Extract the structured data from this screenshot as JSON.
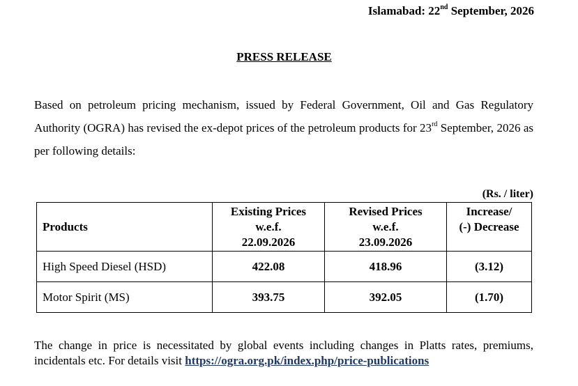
{
  "header": {
    "city": "Islamabad: 22",
    "date_suffix": "nd",
    "date_rest": " September, 2026"
  },
  "title": "PRESS RELEASE",
  "intro": {
    "text_before": "Based on petroleum pricing mechanism, issued by Federal Government, Oil and Gas Regulatory Authority (OGRA) has revised the ex-depot prices of the petroleum products for 23",
    "suffix": "rd",
    "text_after": " September, 2026 as per following details:"
  },
  "unit_note": "(Rs. / liter)",
  "table": {
    "headers": {
      "products": "Products",
      "existing_line1": "Existing Prices",
      "existing_line2": "w.e.f.",
      "existing_line3": "22.09.2026",
      "revised_line1": "Revised Prices",
      "revised_line2": "w.e.f.",
      "revised_line3": "23.09.2026",
      "change_line1": "Increase/",
      "change_line2": "(-) Decrease"
    },
    "rows": [
      {
        "product": "High Speed Diesel (HSD)",
        "existing": "422.08",
        "revised": "418.96",
        "change": "(3.12)"
      },
      {
        "product": "Motor Spirit (MS)",
        "existing": "393.75",
        "revised": "392.05",
        "change": "(1.70)"
      }
    ]
  },
  "footer": {
    "text": "The change in price is necessitated by global events including changes in Platts rates, premiums, incidentals etc. For details visit ",
    "link": "https://ogra.org.pk/index.php/price-publications"
  }
}
